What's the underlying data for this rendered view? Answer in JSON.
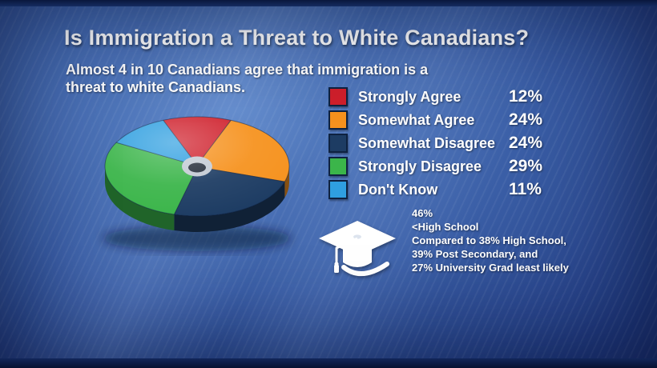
{
  "title": "Is Immigration a Threat to White Canadians?",
  "subtitle_line1": "Almost 4 in 10 Canadians agree that immigration is a",
  "subtitle_line2": "threat to white Canadians.",
  "legend": [
    {
      "label": "Strongly Agree",
      "value": "12%",
      "color": "#cf1f2b"
    },
    {
      "label": "Somewhat Agree",
      "value": "24%",
      "color": "#f6921e"
    },
    {
      "label": "Somewhat Disagree",
      "value": "24%",
      "color": "#1d3c63"
    },
    {
      "label": "Strongly Disagree",
      "value": "29%",
      "color": "#3bb54a"
    },
    {
      "label": "Don't Know",
      "value": "11%",
      "color": "#2f9fe0"
    }
  ],
  "education": {
    "icon": "graduation-cap-icon",
    "lines": [
      "46%",
      "<High School",
      "Compared to 38% High School,",
      "39% Post Secondary, and",
      "27% University Grad least likely"
    ]
  },
  "chart_data": {
    "type": "pie",
    "title": "Is Immigration a Threat to White Canadians?",
    "categories": [
      "Strongly Agree",
      "Somewhat Agree",
      "Somewhat Disagree",
      "Strongly Disagree",
      "Don't Know"
    ],
    "values": [
      12,
      24,
      24,
      29,
      11
    ],
    "colors": [
      "#cf1f2b",
      "#f6921e",
      "#1d3c63",
      "#3bb54a",
      "#2f9fe0"
    ],
    "donut": true,
    "style": "3d-tilted",
    "start": "first slice centered at top, clockwise order",
    "legend_position": "right"
  }
}
